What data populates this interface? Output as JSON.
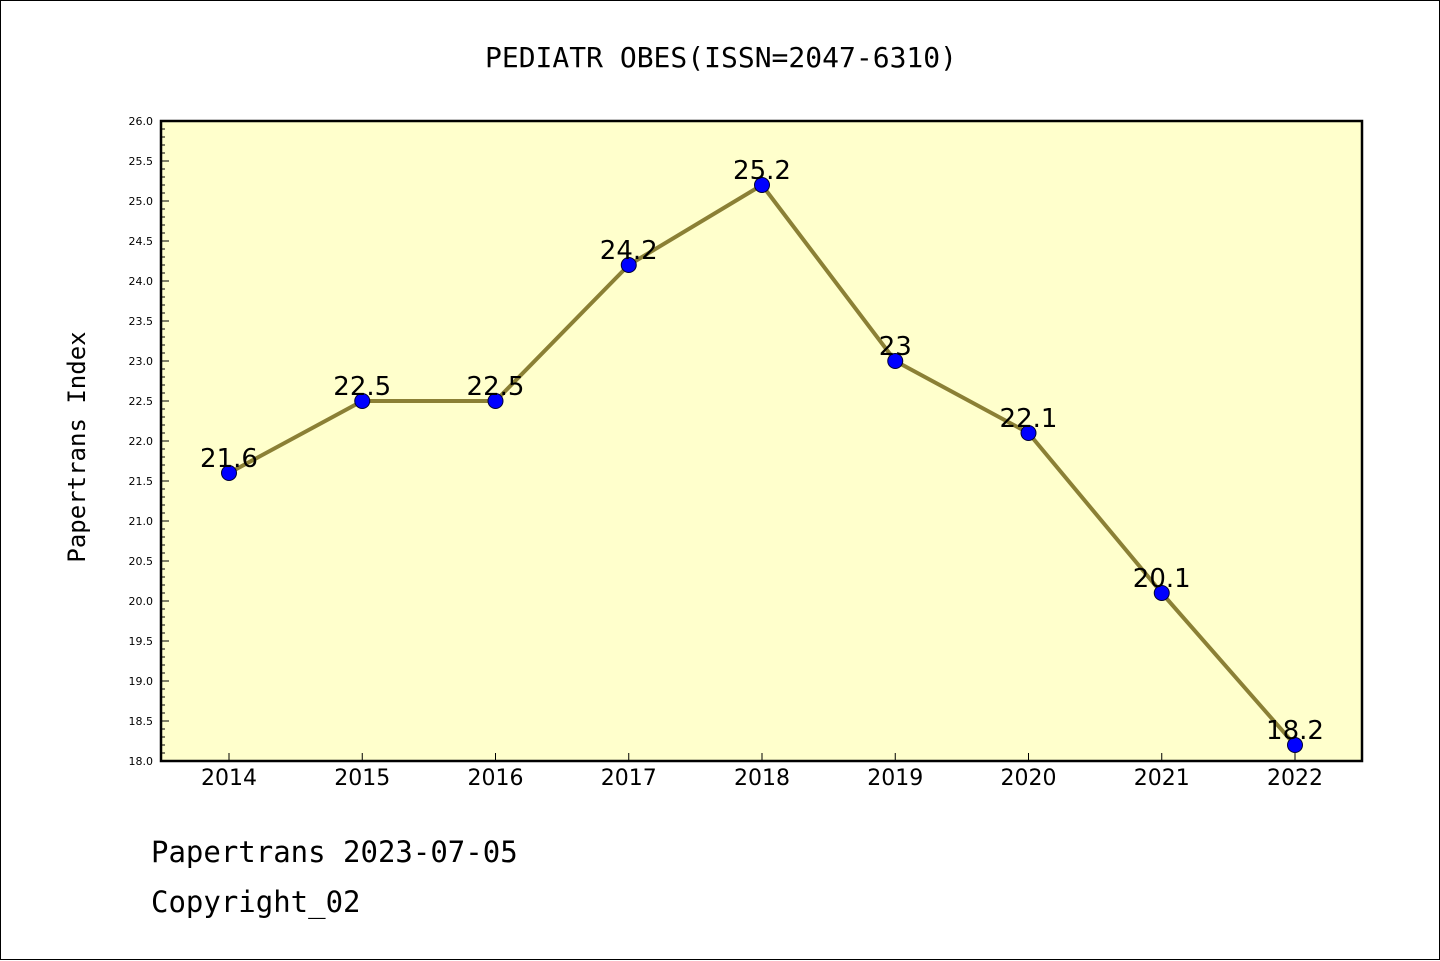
{
  "colors": {
    "plot_background": "#ffffcc",
    "line": "#8b8035",
    "marker": "#0000ff",
    "marker_edge": "#000033"
  },
  "footer": {
    "line1": "Papertrans 2023-07-05",
    "line2": "Copyright_02"
  },
  "chart_data": {
    "type": "line",
    "title": "PEDIATR OBES(ISSN=2047-6310)",
    "xlabel": "",
    "ylabel": "Papertrans Index",
    "categories": [
      "2014",
      "2015",
      "2016",
      "2017",
      "2018",
      "2019",
      "2020",
      "2021",
      "2022"
    ],
    "series": [
      {
        "values": [
          21.6,
          22.5,
          22.5,
          24.2,
          25.2,
          23.0,
          22.1,
          20.1,
          18.2
        ],
        "labels": [
          "21.6",
          "22.5",
          "22.5",
          "24.2",
          "25.2",
          "23",
          "22.1",
          "20.1",
          "18.2"
        ]
      }
    ],
    "ylim": [
      18.0,
      26.0
    ],
    "yticks": [
      "18.0",
      "18.5",
      "19.0",
      "19.5",
      "20.0",
      "20.5",
      "21.0",
      "21.5",
      "22.0",
      "22.5",
      "23.0",
      "23.5",
      "24.0",
      "24.5",
      "25.0",
      "25.5",
      "26.0"
    ],
    "grid": false,
    "legend": "none"
  }
}
